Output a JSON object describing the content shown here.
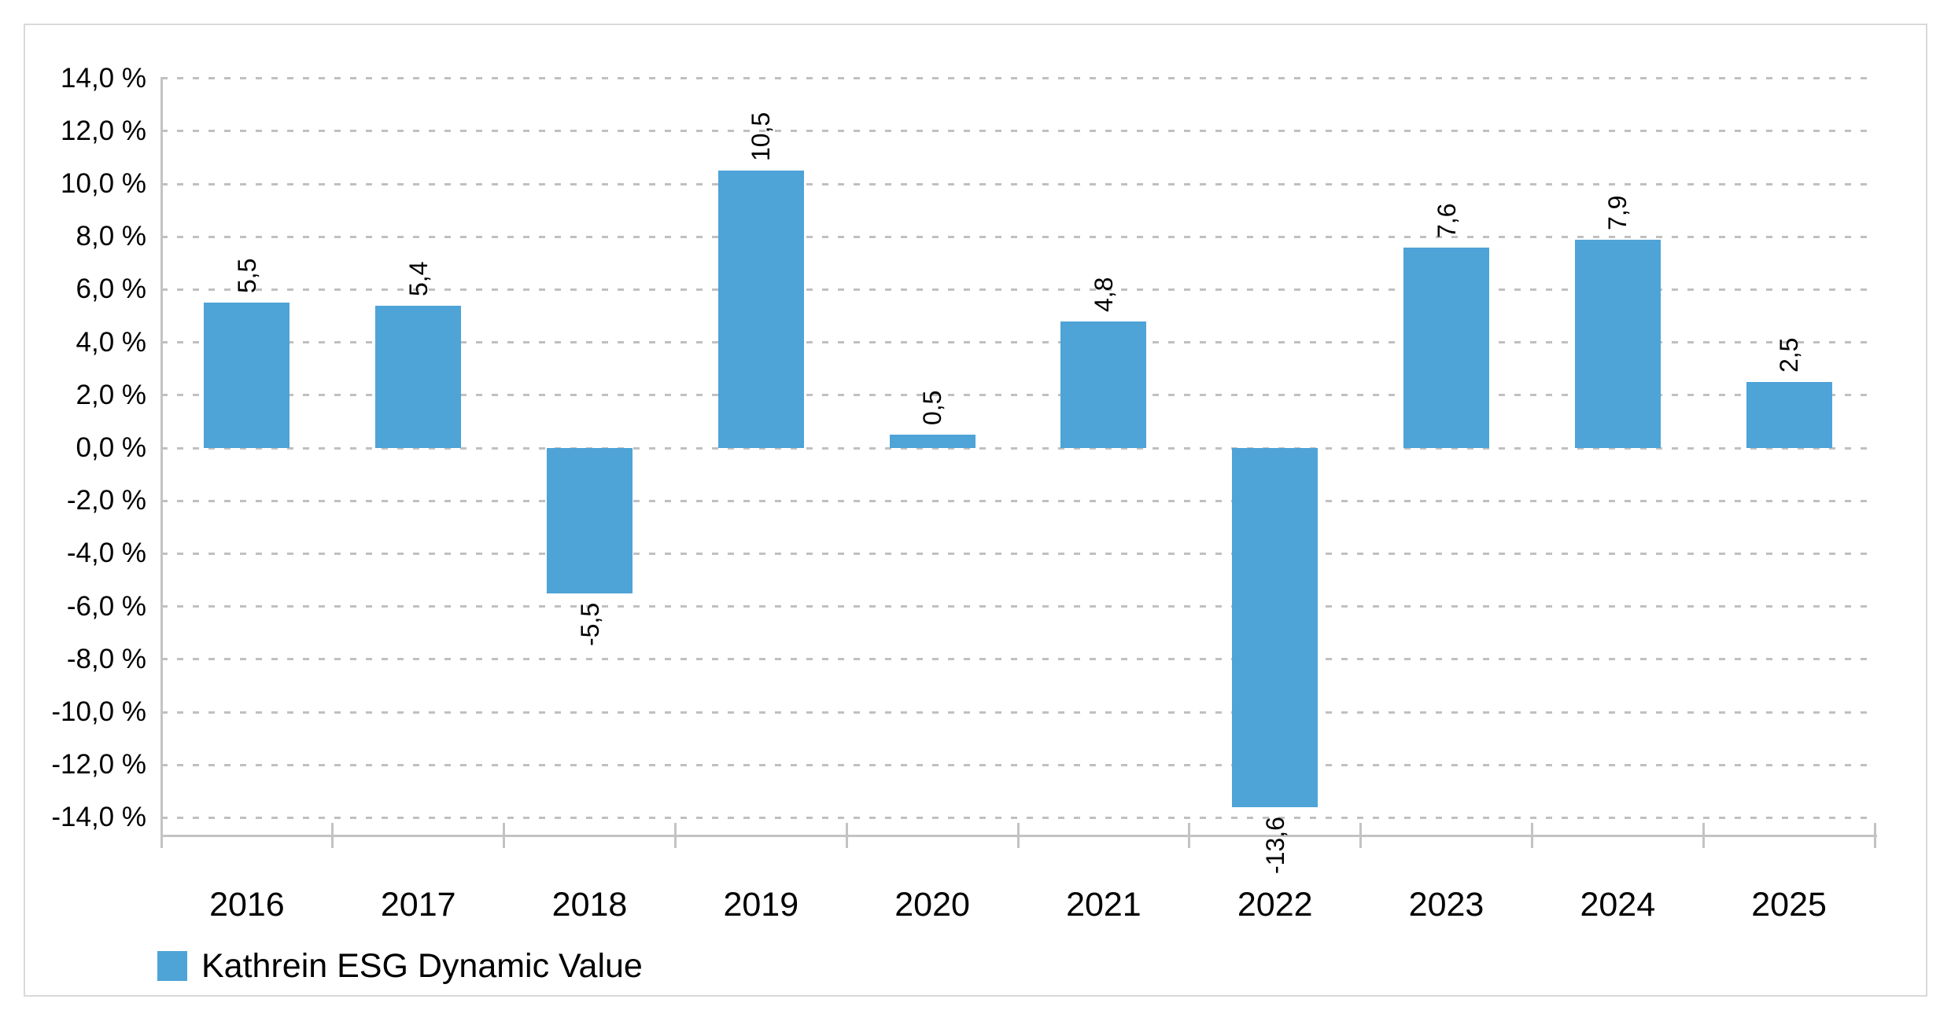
{
  "chart_data": {
    "type": "bar",
    "title": "",
    "categories": [
      "2016",
      "2017",
      "2018",
      "2019",
      "2020",
      "2021",
      "2022",
      "2023",
      "2024",
      "2025"
    ],
    "series": [
      {
        "name": "Kathrein ESG Dynamic Value",
        "values": [
          5.5,
          5.4,
          -5.5,
          10.5,
          0.5,
          4.8,
          -13.6,
          7.6,
          7.9,
          2.5
        ]
      }
    ],
    "value_labels": [
      "5,5",
      "5,4",
      "-5,5",
      "10,5",
      "0,5",
      "4,8",
      "-13,6",
      "7,6",
      "7,9",
      "2,5"
    ],
    "value_label_rotation": -90,
    "y_tick_labels": [
      "14,0 %",
      "12,0 %",
      "10,0 %",
      "8,0 %",
      "6,0 %",
      "4,0 %",
      "2,0 %",
      "0,0 %",
      "-2,0 %",
      "-4,0 %",
      "-6,0 %",
      "-8,0 %",
      "-10,0 %",
      "-12,0 %",
      "-14,0 %"
    ],
    "y_grid_max": 14,
    "y_grid_min": -14,
    "y_grid_step": 2,
    "ylim": [
      -14.7,
      14.05
    ],
    "xlabel": "",
    "ylabel": "",
    "grid": "dashed-horizontal",
    "legend_position": "bottom-left",
    "colors": {
      "bar": "#4EA3D7",
      "grid": "#C0C0C0",
      "axis": "#C3C3C3",
      "text": "#000000",
      "frame_border": "#D9D9D9",
      "background": "#FFFFFF"
    }
  },
  "legend": {
    "items": [
      {
        "label": "Kathrein ESG Dynamic Value",
        "swatch_color": "#4EA3D7"
      }
    ]
  }
}
